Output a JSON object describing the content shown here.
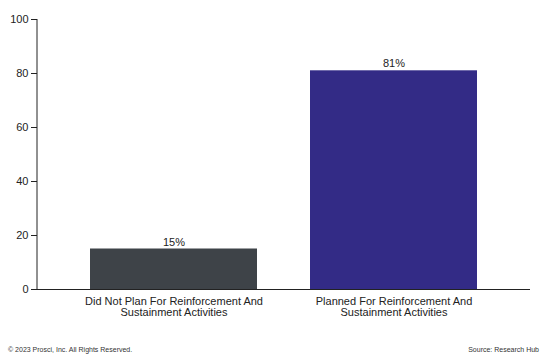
{
  "chart_data": {
    "type": "bar",
    "categories": [
      "Did Not Plan For Reinforcement And Sustainment Activities",
      "Planned For Reinforcement And Sustainment Activities"
    ],
    "values": [
      15,
      81
    ],
    "value_labels": [
      "15%",
      "81%"
    ],
    "data_labels": true,
    "colors": [
      "#3e4348",
      "#332b86"
    ],
    "ylim": [
      0,
      100
    ],
    "yticks": [
      0,
      20,
      40,
      60,
      80,
      100
    ],
    "grid": false,
    "caption": "© 2023 Prosci, Inc. All Rights Reserved.",
    "source": "Source: Research Hub"
  }
}
